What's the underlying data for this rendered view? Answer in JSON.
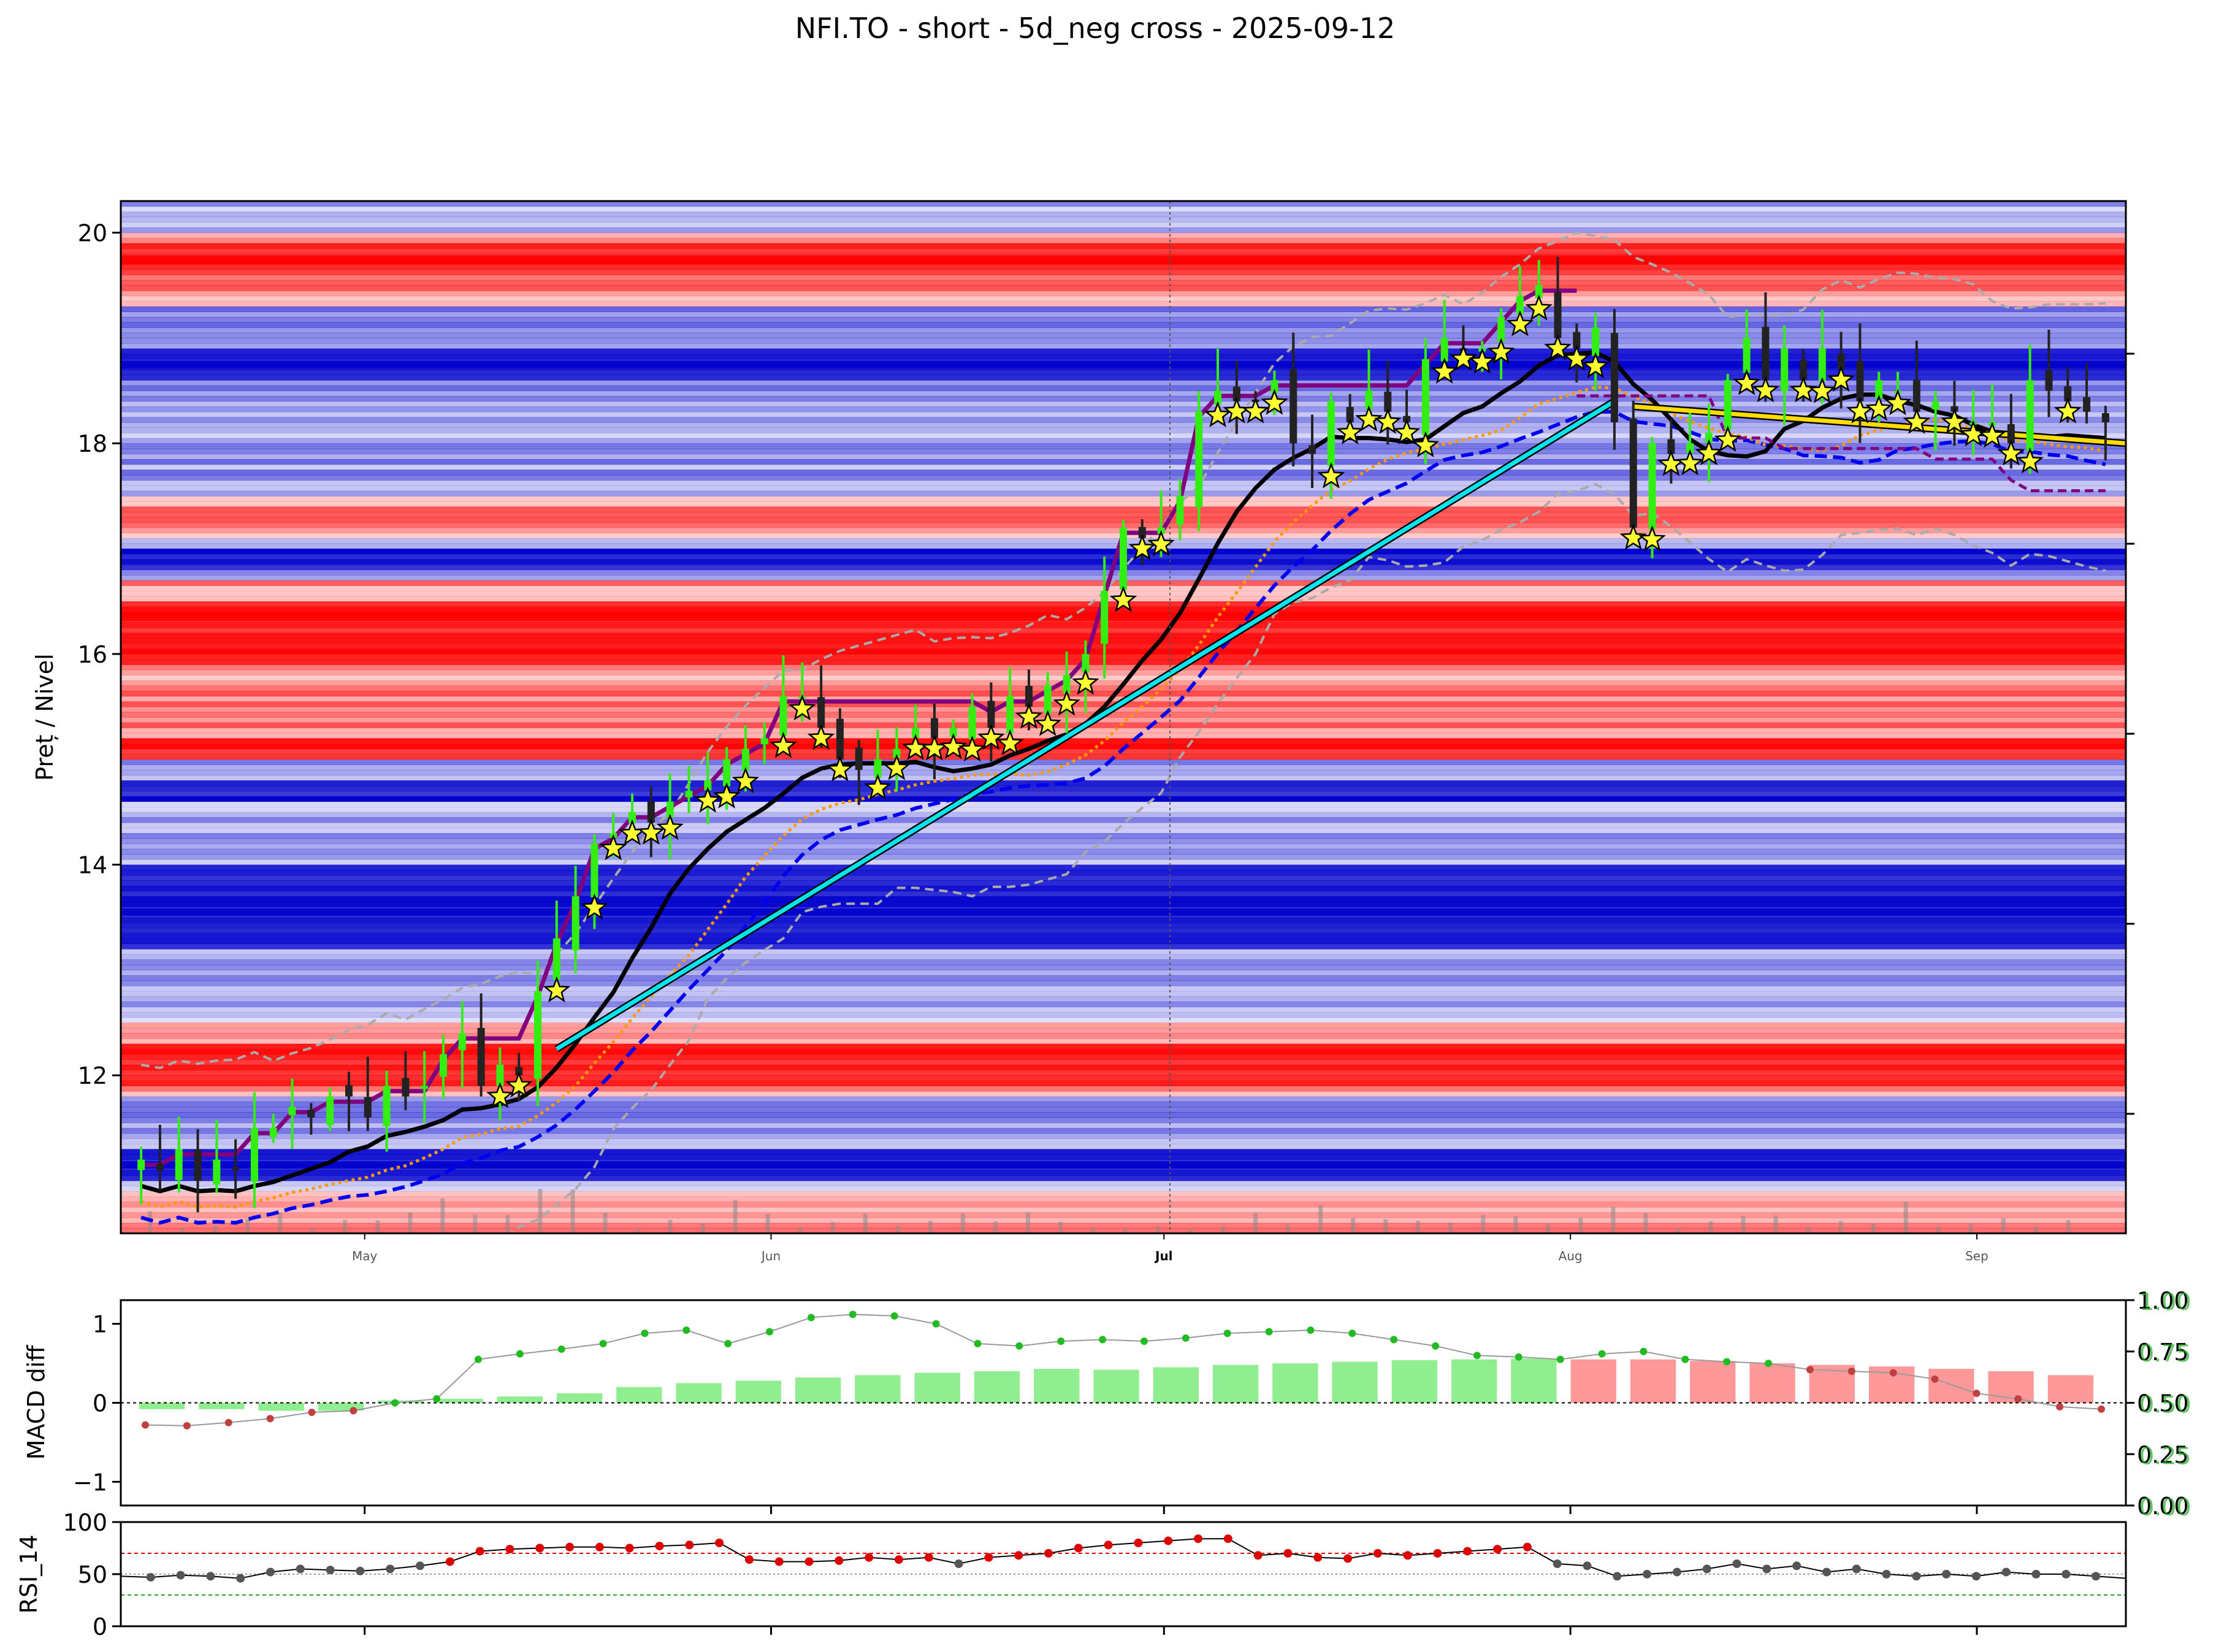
{
  "colors": {
    "support_band": "#0000cc",
    "resistance_band": "#ff0000",
    "candle_up": "#33ee11",
    "candle_down": "#222222",
    "star_fill": "#ffff33",
    "ma_black": "#000000",
    "ma_blue_dashed": "#0000ee",
    "ma_orange_dotted": "#ff9900",
    "purple_step": "#800080",
    "bollinger": "#aaaaaa",
    "trend_cyan": "#00e5ee",
    "trend_yellow": "#ffdd00",
    "macd_pos": "#90ee90",
    "macd_neg": "#ff9999",
    "macd_dot_pos": "#22bb22",
    "macd_dot_neg": "#c04040",
    "rsi_dot_high": "#dd0000",
    "rsi_dot_mid": "#555555"
  },
  "chart_data": [
    {
      "type": "candlestick",
      "title": "NFI.TO - short - 5d_neg cross - 2025-09-12",
      "ylabel": "Preț / Nivel",
      "ylim": [
        10.5,
        20.3
      ],
      "yticks": [
        "12",
        "14",
        "16",
        "18",
        "20"
      ],
      "xticks": [
        "May",
        "Jun",
        "Jul",
        "Aug",
        "Sep"
      ],
      "x_range_days": [
        0,
        148
      ],
      "xtick_days": [
        18,
        48,
        77,
        107,
        137
      ],
      "close": [
        11.2,
        11.1,
        11.3,
        11.0,
        11.2,
        11.1,
        11.5,
        11.5,
        11.7,
        11.6,
        11.8,
        11.8,
        11.6,
        11.9,
        11.8,
        11.9,
        12.2,
        12.4,
        11.9,
        12.1,
        12.0,
        12.8,
        13.3,
        13.7,
        14.2,
        14.3,
        14.5,
        14.4,
        14.6,
        14.7,
        14.8,
        15.0,
        15.1,
        15.2,
        15.6,
        15.6,
        15.3,
        15.0,
        14.9,
        15.0,
        15.1,
        15.3,
        15.2,
        15.3,
        15.5,
        15.3,
        15.6,
        15.5,
        15.7,
        15.8,
        16.0,
        16.6,
        17.2,
        17.1,
        17.2,
        17.5,
        18.3,
        18.5,
        18.4,
        18.4,
        18.6,
        18.0,
        17.9,
        18.4,
        18.2,
        18.5,
        18.3,
        18.2,
        18.8,
        19.0,
        18.9,
        18.9,
        19.2,
        19.4,
        19.5,
        19.0,
        18.9,
        19.1,
        18.2,
        17.2,
        18.0,
        17.9,
        18.0,
        18.1,
        18.6,
        19.0,
        18.6,
        18.9,
        18.6,
        18.9,
        18.7,
        18.4,
        18.6,
        18.5,
        18.3,
        18.4,
        18.3,
        18.2,
        18.2,
        18.0,
        18.6,
        18.5,
        18.4,
        18.3,
        18.2
      ],
      "volume_bars": 60
    },
    {
      "type": "bar",
      "ylabel": "MACD diff",
      "ylim": [
        -1.3,
        1.3
      ],
      "yticks": [
        "−1",
        "0",
        "1"
      ],
      "secondary_yticks": [
        "0.00",
        "0.25",
        "0.50",
        "0.75",
        "1.00"
      ],
      "hist": [
        -0.08,
        -0.08,
        -0.1,
        -0.1,
        0.03,
        0.05,
        0.08,
        0.12,
        0.2,
        0.25,
        0.28,
        0.32,
        0.35,
        0.38,
        0.4,
        0.43,
        0.42,
        0.45,
        0.48,
        0.5,
        0.52,
        0.54,
        0.55,
        0.56,
        0.55,
        0.55,
        0.53,
        0.5,
        0.48,
        0.46,
        0.43,
        0.4,
        0.35
      ],
      "line": [
        -0.28,
        -0.29,
        -0.25,
        -0.2,
        -0.12,
        -0.1,
        0.0,
        0.05,
        0.55,
        0.62,
        0.68,
        0.75,
        0.88,
        0.92,
        0.75,
        0.9,
        1.08,
        1.12,
        1.1,
        1.0,
        0.75,
        0.72,
        0.78,
        0.8,
        0.78,
        0.82,
        0.88,
        0.9,
        0.92,
        0.88,
        0.8,
        0.72,
        0.6,
        0.58,
        0.55,
        0.62,
        0.65,
        0.55,
        0.52,
        0.5,
        0.42,
        0.4,
        0.38,
        0.3,
        0.12,
        0.05,
        -0.05,
        -0.08
      ]
    },
    {
      "type": "line",
      "ylabel": "RSI_14",
      "ylim": [
        0,
        100
      ],
      "yticks": [
        "0",
        "50",
        "100"
      ],
      "overbought": 70,
      "oversold": 30,
      "values": [
        48,
        47,
        49,
        48,
        46,
        52,
        55,
        54,
        53,
        55,
        58,
        62,
        72,
        74,
        75,
        76,
        76,
        75,
        77,
        78,
        80,
        64,
        62,
        62,
        63,
        66,
        64,
        66,
        60,
        66,
        68,
        70,
        75,
        78,
        80,
        82,
        84,
        84,
        68,
        70,
        66,
        65,
        70,
        68,
        70,
        72,
        74,
        76,
        60,
        58,
        48,
        50,
        52,
        55,
        60,
        55,
        58,
        52,
        55,
        50,
        48,
        50,
        48,
        52,
        50,
        50,
        48,
        46
      ]
    }
  ]
}
